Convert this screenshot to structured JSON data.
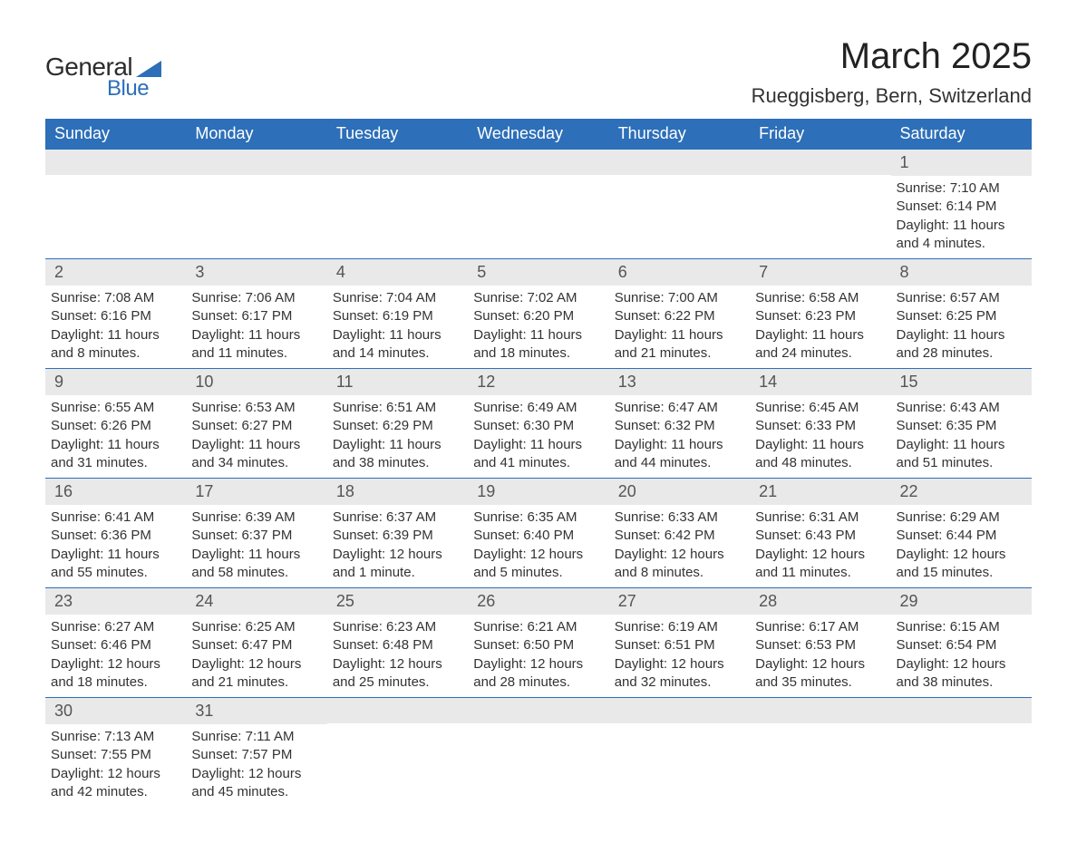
{
  "logo": {
    "general": "General",
    "blue": "Blue"
  },
  "title": "March 2025",
  "location": "Rueggisberg, Bern, Switzerland",
  "colors": {
    "header_bg": "#2d6fb8",
    "header_text": "#ffffff",
    "daynum_bg": "#e9e9e9",
    "row_divider": "#2d6fb8",
    "body_text": "#333333"
  },
  "weekdays": [
    "Sunday",
    "Monday",
    "Tuesday",
    "Wednesday",
    "Thursday",
    "Friday",
    "Saturday"
  ],
  "weeks": [
    [
      null,
      null,
      null,
      null,
      null,
      null,
      {
        "n": "1",
        "sunrise": "Sunrise: 7:10 AM",
        "sunset": "Sunset: 6:14 PM",
        "daylight": "Daylight: 11 hours and 4 minutes."
      }
    ],
    [
      {
        "n": "2",
        "sunrise": "Sunrise: 7:08 AM",
        "sunset": "Sunset: 6:16 PM",
        "daylight": "Daylight: 11 hours and 8 minutes."
      },
      {
        "n": "3",
        "sunrise": "Sunrise: 7:06 AM",
        "sunset": "Sunset: 6:17 PM",
        "daylight": "Daylight: 11 hours and 11 minutes."
      },
      {
        "n": "4",
        "sunrise": "Sunrise: 7:04 AM",
        "sunset": "Sunset: 6:19 PM",
        "daylight": "Daylight: 11 hours and 14 minutes."
      },
      {
        "n": "5",
        "sunrise": "Sunrise: 7:02 AM",
        "sunset": "Sunset: 6:20 PM",
        "daylight": "Daylight: 11 hours and 18 minutes."
      },
      {
        "n": "6",
        "sunrise": "Sunrise: 7:00 AM",
        "sunset": "Sunset: 6:22 PM",
        "daylight": "Daylight: 11 hours and 21 minutes."
      },
      {
        "n": "7",
        "sunrise": "Sunrise: 6:58 AM",
        "sunset": "Sunset: 6:23 PM",
        "daylight": "Daylight: 11 hours and 24 minutes."
      },
      {
        "n": "8",
        "sunrise": "Sunrise: 6:57 AM",
        "sunset": "Sunset: 6:25 PM",
        "daylight": "Daylight: 11 hours and 28 minutes."
      }
    ],
    [
      {
        "n": "9",
        "sunrise": "Sunrise: 6:55 AM",
        "sunset": "Sunset: 6:26 PM",
        "daylight": "Daylight: 11 hours and 31 minutes."
      },
      {
        "n": "10",
        "sunrise": "Sunrise: 6:53 AM",
        "sunset": "Sunset: 6:27 PM",
        "daylight": "Daylight: 11 hours and 34 minutes."
      },
      {
        "n": "11",
        "sunrise": "Sunrise: 6:51 AM",
        "sunset": "Sunset: 6:29 PM",
        "daylight": "Daylight: 11 hours and 38 minutes."
      },
      {
        "n": "12",
        "sunrise": "Sunrise: 6:49 AM",
        "sunset": "Sunset: 6:30 PM",
        "daylight": "Daylight: 11 hours and 41 minutes."
      },
      {
        "n": "13",
        "sunrise": "Sunrise: 6:47 AM",
        "sunset": "Sunset: 6:32 PM",
        "daylight": "Daylight: 11 hours and 44 minutes."
      },
      {
        "n": "14",
        "sunrise": "Sunrise: 6:45 AM",
        "sunset": "Sunset: 6:33 PM",
        "daylight": "Daylight: 11 hours and 48 minutes."
      },
      {
        "n": "15",
        "sunrise": "Sunrise: 6:43 AM",
        "sunset": "Sunset: 6:35 PM",
        "daylight": "Daylight: 11 hours and 51 minutes."
      }
    ],
    [
      {
        "n": "16",
        "sunrise": "Sunrise: 6:41 AM",
        "sunset": "Sunset: 6:36 PM",
        "daylight": "Daylight: 11 hours and 55 minutes."
      },
      {
        "n": "17",
        "sunrise": "Sunrise: 6:39 AM",
        "sunset": "Sunset: 6:37 PM",
        "daylight": "Daylight: 11 hours and 58 minutes."
      },
      {
        "n": "18",
        "sunrise": "Sunrise: 6:37 AM",
        "sunset": "Sunset: 6:39 PM",
        "daylight": "Daylight: 12 hours and 1 minute."
      },
      {
        "n": "19",
        "sunrise": "Sunrise: 6:35 AM",
        "sunset": "Sunset: 6:40 PM",
        "daylight": "Daylight: 12 hours and 5 minutes."
      },
      {
        "n": "20",
        "sunrise": "Sunrise: 6:33 AM",
        "sunset": "Sunset: 6:42 PM",
        "daylight": "Daylight: 12 hours and 8 minutes."
      },
      {
        "n": "21",
        "sunrise": "Sunrise: 6:31 AM",
        "sunset": "Sunset: 6:43 PM",
        "daylight": "Daylight: 12 hours and 11 minutes."
      },
      {
        "n": "22",
        "sunrise": "Sunrise: 6:29 AM",
        "sunset": "Sunset: 6:44 PM",
        "daylight": "Daylight: 12 hours and 15 minutes."
      }
    ],
    [
      {
        "n": "23",
        "sunrise": "Sunrise: 6:27 AM",
        "sunset": "Sunset: 6:46 PM",
        "daylight": "Daylight: 12 hours and 18 minutes."
      },
      {
        "n": "24",
        "sunrise": "Sunrise: 6:25 AM",
        "sunset": "Sunset: 6:47 PM",
        "daylight": "Daylight: 12 hours and 21 minutes."
      },
      {
        "n": "25",
        "sunrise": "Sunrise: 6:23 AM",
        "sunset": "Sunset: 6:48 PM",
        "daylight": "Daylight: 12 hours and 25 minutes."
      },
      {
        "n": "26",
        "sunrise": "Sunrise: 6:21 AM",
        "sunset": "Sunset: 6:50 PM",
        "daylight": "Daylight: 12 hours and 28 minutes."
      },
      {
        "n": "27",
        "sunrise": "Sunrise: 6:19 AM",
        "sunset": "Sunset: 6:51 PM",
        "daylight": "Daylight: 12 hours and 32 minutes."
      },
      {
        "n": "28",
        "sunrise": "Sunrise: 6:17 AM",
        "sunset": "Sunset: 6:53 PM",
        "daylight": "Daylight: 12 hours and 35 minutes."
      },
      {
        "n": "29",
        "sunrise": "Sunrise: 6:15 AM",
        "sunset": "Sunset: 6:54 PM",
        "daylight": "Daylight: 12 hours and 38 minutes."
      }
    ],
    [
      {
        "n": "30",
        "sunrise": "Sunrise: 7:13 AM",
        "sunset": "Sunset: 7:55 PM",
        "daylight": "Daylight: 12 hours and 42 minutes."
      },
      {
        "n": "31",
        "sunrise": "Sunrise: 7:11 AM",
        "sunset": "Sunset: 7:57 PM",
        "daylight": "Daylight: 12 hours and 45 minutes."
      },
      null,
      null,
      null,
      null,
      null
    ]
  ]
}
